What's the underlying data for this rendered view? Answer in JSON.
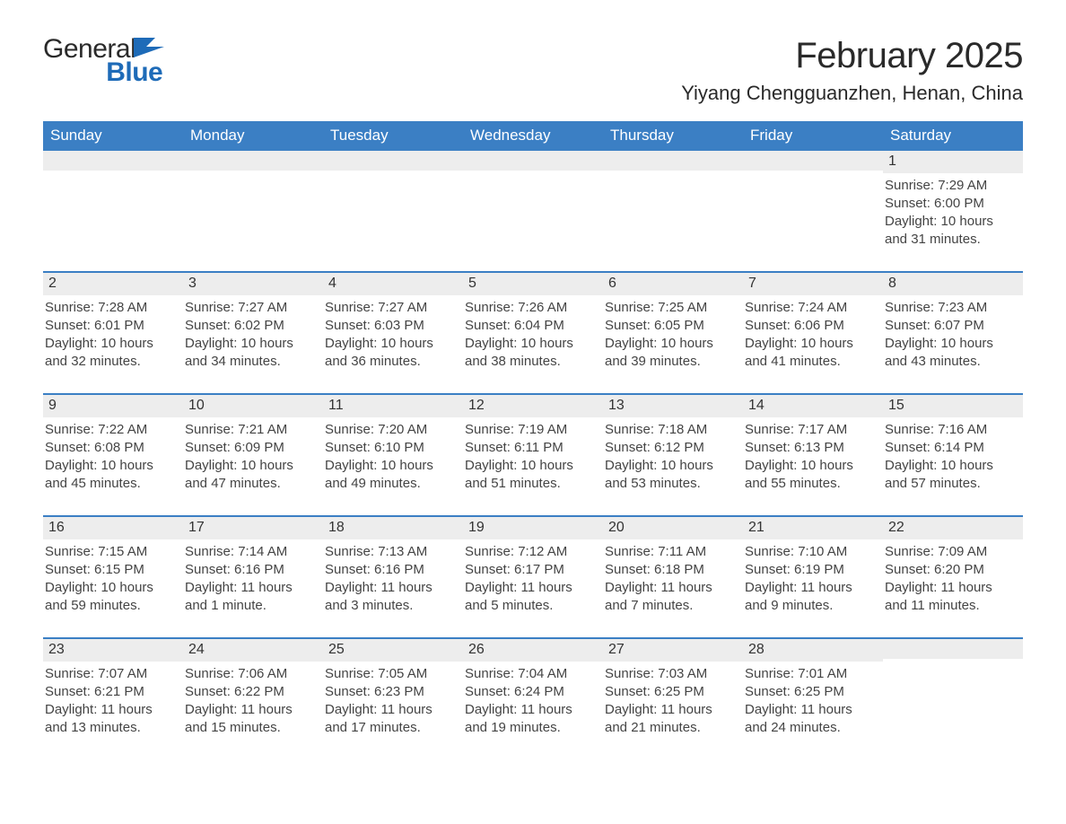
{
  "logo": {
    "word1": "General",
    "word2": "Blue",
    "mark_color": "#1e6bb8"
  },
  "header": {
    "month_title": "February 2025",
    "location": "Yiyang Chengguanzhen, Henan, China"
  },
  "colors": {
    "header_blue": "#3b7fc4",
    "accent_blue": "#1e6bb8",
    "row_border": "#3b7fc4",
    "daynum_bg": "#ededed",
    "background": "#ffffff",
    "text": "#2b2b2b"
  },
  "weekdays": [
    "Sunday",
    "Monday",
    "Tuesday",
    "Wednesday",
    "Thursday",
    "Friday",
    "Saturday"
  ],
  "weeks": [
    [
      {
        "num": "",
        "sr": "",
        "ss": "",
        "dl": ""
      },
      {
        "num": "",
        "sr": "",
        "ss": "",
        "dl": ""
      },
      {
        "num": "",
        "sr": "",
        "ss": "",
        "dl": ""
      },
      {
        "num": "",
        "sr": "",
        "ss": "",
        "dl": ""
      },
      {
        "num": "",
        "sr": "",
        "ss": "",
        "dl": ""
      },
      {
        "num": "",
        "sr": "",
        "ss": "",
        "dl": ""
      },
      {
        "num": "1",
        "sr": "Sunrise: 7:29 AM",
        "ss": "Sunset: 6:00 PM",
        "dl": "Daylight: 10 hours and 31 minutes."
      }
    ],
    [
      {
        "num": "2",
        "sr": "Sunrise: 7:28 AM",
        "ss": "Sunset: 6:01 PM",
        "dl": "Daylight: 10 hours and 32 minutes."
      },
      {
        "num": "3",
        "sr": "Sunrise: 7:27 AM",
        "ss": "Sunset: 6:02 PM",
        "dl": "Daylight: 10 hours and 34 minutes."
      },
      {
        "num": "4",
        "sr": "Sunrise: 7:27 AM",
        "ss": "Sunset: 6:03 PM",
        "dl": "Daylight: 10 hours and 36 minutes."
      },
      {
        "num": "5",
        "sr": "Sunrise: 7:26 AM",
        "ss": "Sunset: 6:04 PM",
        "dl": "Daylight: 10 hours and 38 minutes."
      },
      {
        "num": "6",
        "sr": "Sunrise: 7:25 AM",
        "ss": "Sunset: 6:05 PM",
        "dl": "Daylight: 10 hours and 39 minutes."
      },
      {
        "num": "7",
        "sr": "Sunrise: 7:24 AM",
        "ss": "Sunset: 6:06 PM",
        "dl": "Daylight: 10 hours and 41 minutes."
      },
      {
        "num": "8",
        "sr": "Sunrise: 7:23 AM",
        "ss": "Sunset: 6:07 PM",
        "dl": "Daylight: 10 hours and 43 minutes."
      }
    ],
    [
      {
        "num": "9",
        "sr": "Sunrise: 7:22 AM",
        "ss": "Sunset: 6:08 PM",
        "dl": "Daylight: 10 hours and 45 minutes."
      },
      {
        "num": "10",
        "sr": "Sunrise: 7:21 AM",
        "ss": "Sunset: 6:09 PM",
        "dl": "Daylight: 10 hours and 47 minutes."
      },
      {
        "num": "11",
        "sr": "Sunrise: 7:20 AM",
        "ss": "Sunset: 6:10 PM",
        "dl": "Daylight: 10 hours and 49 minutes."
      },
      {
        "num": "12",
        "sr": "Sunrise: 7:19 AM",
        "ss": "Sunset: 6:11 PM",
        "dl": "Daylight: 10 hours and 51 minutes."
      },
      {
        "num": "13",
        "sr": "Sunrise: 7:18 AM",
        "ss": "Sunset: 6:12 PM",
        "dl": "Daylight: 10 hours and 53 minutes."
      },
      {
        "num": "14",
        "sr": "Sunrise: 7:17 AM",
        "ss": "Sunset: 6:13 PM",
        "dl": "Daylight: 10 hours and 55 minutes."
      },
      {
        "num": "15",
        "sr": "Sunrise: 7:16 AM",
        "ss": "Sunset: 6:14 PM",
        "dl": "Daylight: 10 hours and 57 minutes."
      }
    ],
    [
      {
        "num": "16",
        "sr": "Sunrise: 7:15 AM",
        "ss": "Sunset: 6:15 PM",
        "dl": "Daylight: 10 hours and 59 minutes."
      },
      {
        "num": "17",
        "sr": "Sunrise: 7:14 AM",
        "ss": "Sunset: 6:16 PM",
        "dl": "Daylight: 11 hours and 1 minute."
      },
      {
        "num": "18",
        "sr": "Sunrise: 7:13 AM",
        "ss": "Sunset: 6:16 PM",
        "dl": "Daylight: 11 hours and 3 minutes."
      },
      {
        "num": "19",
        "sr": "Sunrise: 7:12 AM",
        "ss": "Sunset: 6:17 PM",
        "dl": "Daylight: 11 hours and 5 minutes."
      },
      {
        "num": "20",
        "sr": "Sunrise: 7:11 AM",
        "ss": "Sunset: 6:18 PM",
        "dl": "Daylight: 11 hours and 7 minutes."
      },
      {
        "num": "21",
        "sr": "Sunrise: 7:10 AM",
        "ss": "Sunset: 6:19 PM",
        "dl": "Daylight: 11 hours and 9 minutes."
      },
      {
        "num": "22",
        "sr": "Sunrise: 7:09 AM",
        "ss": "Sunset: 6:20 PM",
        "dl": "Daylight: 11 hours and 11 minutes."
      }
    ],
    [
      {
        "num": "23",
        "sr": "Sunrise: 7:07 AM",
        "ss": "Sunset: 6:21 PM",
        "dl": "Daylight: 11 hours and 13 minutes."
      },
      {
        "num": "24",
        "sr": "Sunrise: 7:06 AM",
        "ss": "Sunset: 6:22 PM",
        "dl": "Daylight: 11 hours and 15 minutes."
      },
      {
        "num": "25",
        "sr": "Sunrise: 7:05 AM",
        "ss": "Sunset: 6:23 PM",
        "dl": "Daylight: 11 hours and 17 minutes."
      },
      {
        "num": "26",
        "sr": "Sunrise: 7:04 AM",
        "ss": "Sunset: 6:24 PM",
        "dl": "Daylight: 11 hours and 19 minutes."
      },
      {
        "num": "27",
        "sr": "Sunrise: 7:03 AM",
        "ss": "Sunset: 6:25 PM",
        "dl": "Daylight: 11 hours and 21 minutes."
      },
      {
        "num": "28",
        "sr": "Sunrise: 7:01 AM",
        "ss": "Sunset: 6:25 PM",
        "dl": "Daylight: 11 hours and 24 minutes."
      },
      {
        "num": "",
        "sr": "",
        "ss": "",
        "dl": ""
      }
    ]
  ]
}
